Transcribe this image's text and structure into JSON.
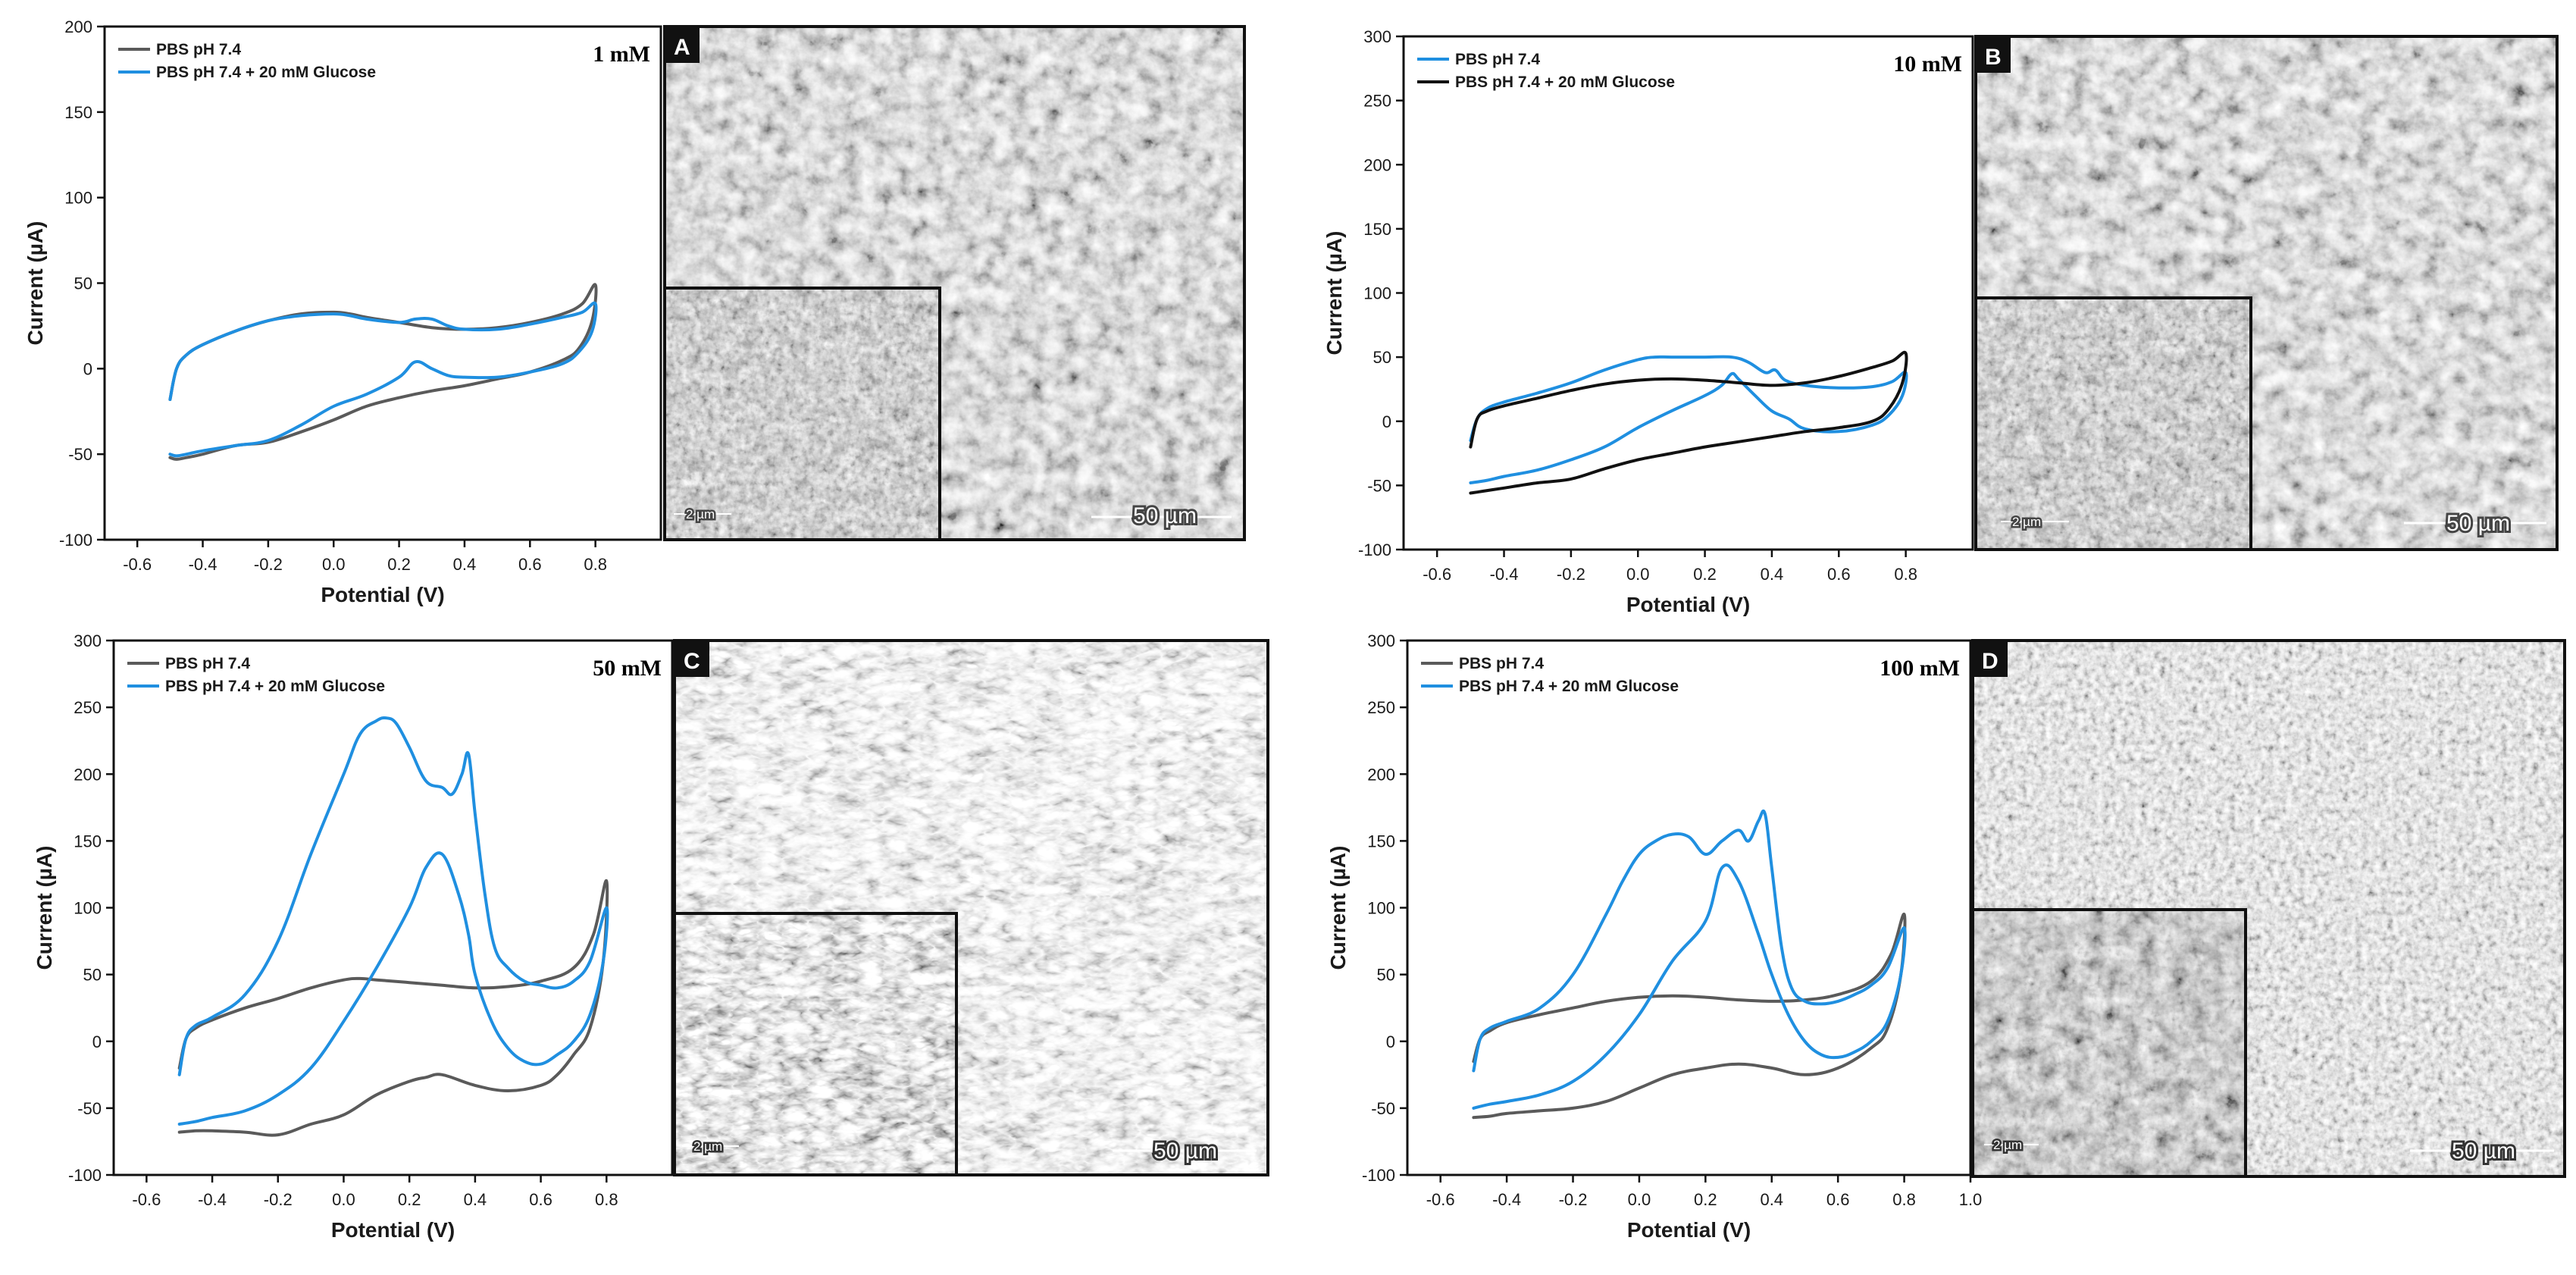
{
  "colors": {
    "grey": "#5a5a5a",
    "blue": "#1f8fe0",
    "black": "#111111"
  },
  "chart_data": [
    {
      "type": "line",
      "panel": "A",
      "annotation": "1 mM",
      "xlabel": "Potential (V)",
      "ylabel": "Current (µA)",
      "xlim": [
        -0.7,
        1.0
      ],
      "ylim": [
        -100,
        200
      ],
      "xticks": [
        "-0.6",
        "-0.4",
        "-0.2",
        "0.0",
        "0.2",
        "0.4",
        "0.6",
        "0.8"
      ],
      "yticks": [
        "-100",
        "-50",
        "0",
        "50",
        "100",
        "150",
        "200"
      ],
      "legend_position": "top-left",
      "series": [
        {
          "name": "PBS pH 7.4",
          "color": "#5a5a5a",
          "x": [
            -0.5,
            -0.48,
            -0.45,
            -0.4,
            -0.3,
            -0.2,
            -0.1,
            0.0,
            0.05,
            0.1,
            0.2,
            0.3,
            0.4,
            0.5,
            0.6,
            0.7,
            0.76,
            0.8,
            0.79,
            0.75,
            0.7,
            0.6,
            0.5,
            0.4,
            0.3,
            0.2,
            0.1,
            0.0,
            -0.1,
            -0.2,
            -0.3,
            -0.4,
            -0.45,
            -0.48,
            -0.5
          ],
          "y": [
            -18,
            0,
            8,
            14,
            22,
            28,
            32,
            33,
            32,
            30,
            27,
            24,
            23,
            24,
            27,
            32,
            38,
            49,
            28,
            12,
            5,
            -2,
            -6,
            -10,
            -13,
            -17,
            -22,
            -30,
            -37,
            -43,
            -45,
            -50,
            -52,
            -53,
            -52
          ]
        },
        {
          "name": "PBS pH 7.4 + 20 mM Glucose",
          "color": "#1f8fe0",
          "x": [
            -0.5,
            -0.48,
            -0.45,
            -0.4,
            -0.3,
            -0.2,
            -0.1,
            0.0,
            0.05,
            0.1,
            0.2,
            0.25,
            0.3,
            0.35,
            0.4,
            0.5,
            0.6,
            0.7,
            0.76,
            0.8,
            0.79,
            0.75,
            0.7,
            0.6,
            0.5,
            0.4,
            0.35,
            0.3,
            0.25,
            0.2,
            0.1,
            0.0,
            -0.1,
            -0.2,
            -0.3,
            -0.4,
            -0.45,
            -0.48,
            -0.5
          ],
          "y": [
            -18,
            0,
            8,
            14,
            22,
            28,
            31,
            32,
            31,
            29,
            27,
            29,
            29,
            25,
            23,
            23,
            26,
            30,
            33,
            38,
            22,
            10,
            3,
            -2,
            -5,
            -5,
            -4,
            0,
            4,
            -5,
            -15,
            -22,
            -33,
            -42,
            -45,
            -48,
            -50,
            -51,
            -50
          ]
        }
      ]
    },
    {
      "type": "line",
      "panel": "B",
      "annotation": "10 mM",
      "xlabel": "Potential (V)",
      "ylabel": "Current (µA)",
      "xlim": [
        -0.7,
        1.0
      ],
      "ylim": [
        -100,
        300
      ],
      "xticks": [
        "-0.6",
        "-0.4",
        "-0.2",
        "0.0",
        "0.2",
        "0.4",
        "0.6",
        "0.8"
      ],
      "yticks": [
        "-100",
        "-50",
        "0",
        "50",
        "100",
        "150",
        "200",
        "250",
        "300"
      ],
      "legend_position": "top-left",
      "series": [
        {
          "name": "PBS pH 7.4",
          "color": "#1f8fe0",
          "x": [
            -0.5,
            -0.48,
            -0.45,
            -0.4,
            -0.3,
            -0.2,
            -0.1,
            0.0,
            0.05,
            0.1,
            0.2,
            0.28,
            0.33,
            0.38,
            0.41,
            0.44,
            0.5,
            0.6,
            0.7,
            0.76,
            0.8,
            0.79,
            0.75,
            0.7,
            0.6,
            0.5,
            0.45,
            0.4,
            0.35,
            0.3,
            0.28,
            0.25,
            0.2,
            0.1,
            0.0,
            -0.1,
            -0.2,
            -0.3,
            -0.4,
            -0.45,
            -0.5
          ],
          "y": [
            -15,
            2,
            10,
            15,
            22,
            30,
            40,
            48,
            50,
            50,
            50,
            50,
            46,
            38,
            40,
            32,
            28,
            26,
            27,
            31,
            38,
            20,
            5,
            -3,
            -8,
            -6,
            2,
            8,
            20,
            33,
            37,
            28,
            20,
            8,
            -5,
            -20,
            -30,
            -38,
            -43,
            -46,
            -48
          ]
        },
        {
          "name": "PBS pH 7.4 + 20 mM Glucose",
          "color": "#111111",
          "x": [
            -0.5,
            -0.48,
            -0.45,
            -0.4,
            -0.3,
            -0.2,
            -0.1,
            0.0,
            0.1,
            0.2,
            0.3,
            0.4,
            0.5,
            0.6,
            0.7,
            0.76,
            0.8,
            0.79,
            0.75,
            0.7,
            0.6,
            0.5,
            0.4,
            0.3,
            0.2,
            0.1,
            0.0,
            -0.1,
            -0.2,
            -0.3,
            -0.4,
            -0.45,
            -0.5
          ],
          "y": [
            -20,
            2,
            8,
            12,
            18,
            24,
            29,
            32,
            33,
            32,
            30,
            28,
            30,
            35,
            42,
            47,
            53,
            30,
            10,
            0,
            -5,
            -8,
            -12,
            -16,
            -20,
            -25,
            -30,
            -37,
            -45,
            -48,
            -52,
            -54,
            -56
          ]
        }
      ]
    },
    {
      "type": "line",
      "panel": "C",
      "annotation": "50 mM",
      "xlabel": "Potential (V)",
      "ylabel": "Current (µA)",
      "xlim": [
        -0.7,
        1.0
      ],
      "ylim": [
        -100,
        300
      ],
      "xticks": [
        "-0.6",
        "-0.4",
        "-0.2",
        "0.0",
        "0.2",
        "0.4",
        "0.6",
        "0.8"
      ],
      "yticks": [
        "-100",
        "-50",
        "0",
        "50",
        "100",
        "150",
        "200",
        "250",
        "300"
      ],
      "legend_position": "top-left",
      "series": [
        {
          "name": "PBS pH 7.4",
          "color": "#5a5a5a",
          "x": [
            -0.5,
            -0.48,
            -0.45,
            -0.4,
            -0.3,
            -0.2,
            -0.1,
            0.0,
            0.05,
            0.1,
            0.2,
            0.3,
            0.4,
            0.5,
            0.6,
            0.7,
            0.76,
            0.8,
            0.79,
            0.75,
            0.7,
            0.65,
            0.6,
            0.5,
            0.4,
            0.3,
            0.25,
            0.2,
            0.1,
            0.0,
            -0.1,
            -0.2,
            -0.3,
            -0.4,
            -0.45,
            -0.5
          ],
          "y": [
            -20,
            2,
            10,
            16,
            25,
            32,
            40,
            46,
            47,
            46,
            44,
            42,
            40,
            41,
            45,
            55,
            80,
            120,
            60,
            10,
            -10,
            -25,
            -33,
            -37,
            -33,
            -25,
            -27,
            -30,
            -40,
            -55,
            -62,
            -70,
            -68,
            -67,
            -67,
            -68
          ]
        },
        {
          "name": "PBS pH 7.4 + 20 mM Glucose",
          "color": "#1f8fe0",
          "x": [
            -0.5,
            -0.48,
            -0.45,
            -0.4,
            -0.3,
            -0.2,
            -0.1,
            0.0,
            0.05,
            0.1,
            0.13,
            0.16,
            0.2,
            0.25,
            0.3,
            0.33,
            0.36,
            0.38,
            0.4,
            0.43,
            0.46,
            0.5,
            0.55,
            0.6,
            0.65,
            0.7,
            0.75,
            0.8,
            0.79,
            0.75,
            0.7,
            0.65,
            0.6,
            0.55,
            0.5,
            0.45,
            0.4,
            0.38,
            0.35,
            0.3,
            0.25,
            0.2,
            0.1,
            0.0,
            -0.1,
            -0.2,
            -0.3,
            -0.4,
            -0.45,
            -0.5
          ],
          "y": [
            -25,
            2,
            12,
            18,
            35,
            75,
            140,
            200,
            230,
            240,
            242,
            238,
            220,
            195,
            190,
            185,
            200,
            215,
            170,
            110,
            70,
            55,
            45,
            42,
            40,
            45,
            60,
            100,
            60,
            20,
            0,
            -10,
            -17,
            -15,
            -5,
            15,
            50,
            80,
            110,
            140,
            130,
            100,
            55,
            15,
            -20,
            -40,
            -52,
            -57,
            -60,
            -62
          ]
        }
      ]
    },
    {
      "type": "line",
      "panel": "D",
      "annotation": "100 mM",
      "xlabel": "Potential (V)",
      "ylabel": "Current (µA)",
      "xlim": [
        -0.7,
        1.0
      ],
      "ylim": [
        -100,
        300
      ],
      "xticks": [
        "-0.6",
        "-0.4",
        "-0.2",
        "0.0",
        "0.2",
        "0.4",
        "0.6",
        "0.8",
        "1.0"
      ],
      "yticks": [
        "-100",
        "-50",
        "0",
        "50",
        "100",
        "150",
        "200",
        "250",
        "300"
      ],
      "legend_position": "top-left",
      "series": [
        {
          "name": "PBS pH 7.4",
          "color": "#5a5a5a",
          "x": [
            -0.5,
            -0.48,
            -0.45,
            -0.4,
            -0.3,
            -0.2,
            -0.1,
            0.0,
            0.1,
            0.2,
            0.3,
            0.4,
            0.5,
            0.6,
            0.7,
            0.76,
            0.8,
            0.79,
            0.75,
            0.7,
            0.6,
            0.5,
            0.4,
            0.3,
            0.2,
            0.1,
            0.0,
            -0.1,
            -0.2,
            -0.3,
            -0.4,
            -0.45,
            -0.5
          ],
          "y": [
            -15,
            2,
            8,
            14,
            20,
            25,
            30,
            33,
            34,
            33,
            31,
            30,
            31,
            35,
            45,
            65,
            95,
            50,
            10,
            -5,
            -20,
            -25,
            -20,
            -17,
            -20,
            -25,
            -35,
            -45,
            -50,
            -52,
            -54,
            -56,
            -57
          ]
        },
        {
          "name": "PBS pH 7.4 + 20 mM Glucose",
          "color": "#1f8fe0",
          "x": [
            -0.5,
            -0.48,
            -0.45,
            -0.4,
            -0.3,
            -0.2,
            -0.1,
            -0.05,
            0.0,
            0.05,
            0.1,
            0.15,
            0.2,
            0.25,
            0.3,
            0.33,
            0.36,
            0.38,
            0.4,
            0.43,
            0.46,
            0.5,
            0.55,
            0.6,
            0.65,
            0.7,
            0.75,
            0.8,
            0.79,
            0.75,
            0.7,
            0.65,
            0.6,
            0.55,
            0.5,
            0.45,
            0.4,
            0.36,
            0.3,
            0.25,
            0.2,
            0.1,
            0.0,
            -0.1,
            -0.2,
            -0.3,
            -0.4,
            -0.45,
            -0.5
          ],
          "y": [
            -22,
            2,
            10,
            15,
            25,
            50,
            95,
            120,
            140,
            150,
            155,
            153,
            140,
            150,
            158,
            150,
            165,
            170,
            130,
            70,
            40,
            30,
            28,
            30,
            35,
            42,
            55,
            85,
            50,
            15,
            0,
            -8,
            -12,
            -10,
            0,
            20,
            50,
            80,
            120,
            130,
            90,
            60,
            20,
            -10,
            -30,
            -40,
            -45,
            -47,
            -50
          ]
        }
      ]
    }
  ],
  "micrographs": [
    {
      "label": "A",
      "scale_main": "50 µm",
      "scale_inset": "2 µm"
    },
    {
      "label": "B",
      "scale_main": "50 µm",
      "scale_inset": "2 µm"
    },
    {
      "label": "C",
      "scale_main": "50 µm",
      "scale_inset": "2 µm"
    },
    {
      "label": "D",
      "scale_main": "50 µm",
      "scale_inset": "2 µm"
    }
  ]
}
